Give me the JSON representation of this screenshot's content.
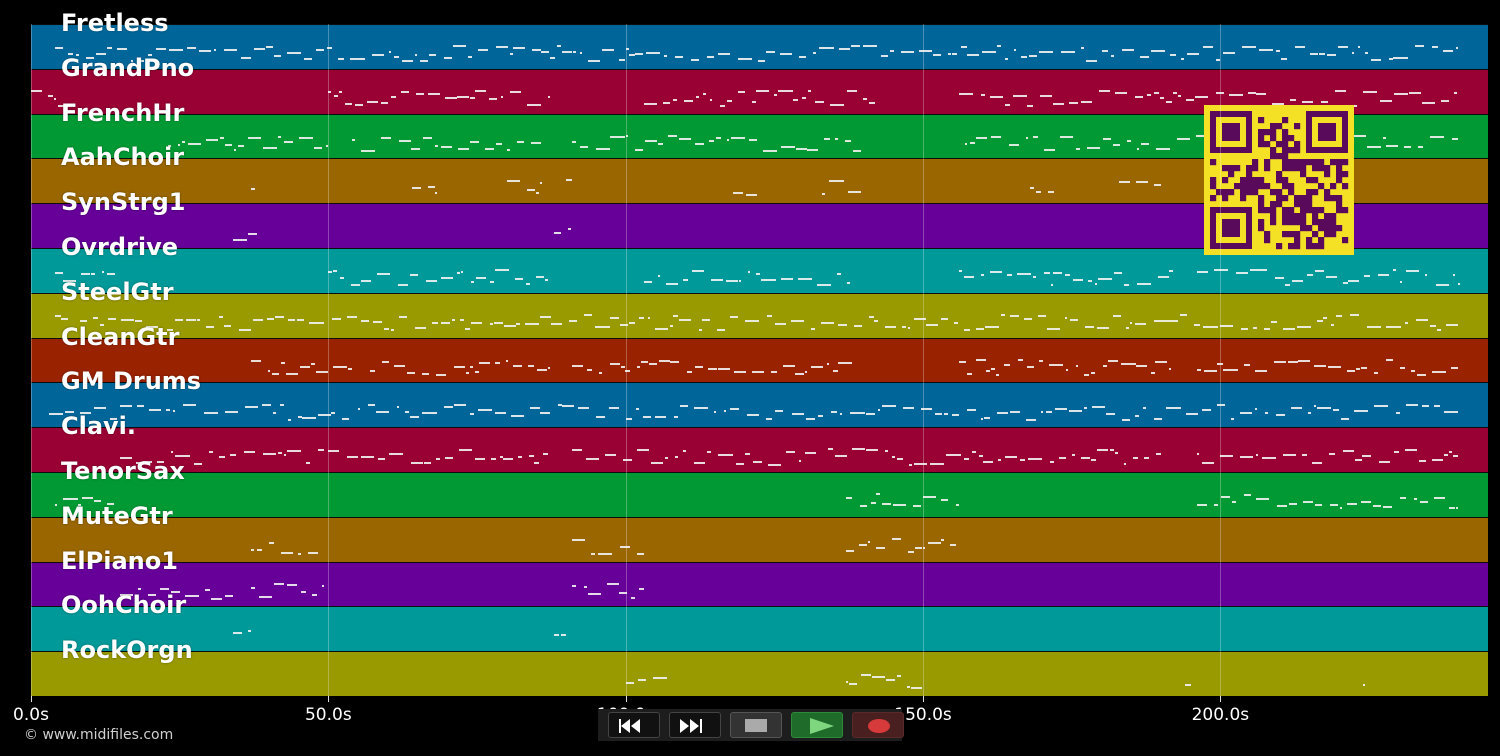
{
  "tracks": [
    {
      "name": "Fretless",
      "color": "#006699"
    },
    {
      "name": "GrandPno",
      "color": "#990033"
    },
    {
      "name": "FrenchHr",
      "color": "#009933"
    },
    {
      "name": "AahChoir",
      "color": "#996600"
    },
    {
      "name": "SynStrg1",
      "color": "#660099"
    },
    {
      "name": "Ovrdrive",
      "color": "#009999"
    },
    {
      "name": "SteelGtr",
      "color": "#999900"
    },
    {
      "name": "CleanGtr",
      "color": "#992200"
    },
    {
      "name": "GM Drums",
      "color": "#006699"
    },
    {
      "name": "Clavi.",
      "color": "#990033"
    },
    {
      "name": "TenorSax",
      "color": "#009933"
    },
    {
      "name": "MuteGtr",
      "color": "#996600"
    },
    {
      "name": "ElPiano1",
      "color": "#660099"
    },
    {
      "name": "OohChoir",
      "color": "#009999"
    },
    {
      "name": "RockOrgn",
      "color": "#999900"
    }
  ],
  "time_axis": {
    "ticks": [
      0,
      50,
      100,
      150,
      200
    ],
    "labels": [
      "0.0s",
      "50.0s",
      "100.0s",
      "150.0s",
      "200.0s"
    ],
    "max_seconds": 245
  },
  "copyright": "© www.midifiles.com",
  "controls": {
    "rewind_icon": "rewind-icon",
    "fast_forward_icon": "fast-forward-icon",
    "stop_icon": "stop-icon",
    "play_icon": "play-icon",
    "record_icon": "record-icon"
  },
  "qr_code": {
    "color_fg": "#5a0a5a",
    "color_bg": "#f4e125"
  }
}
